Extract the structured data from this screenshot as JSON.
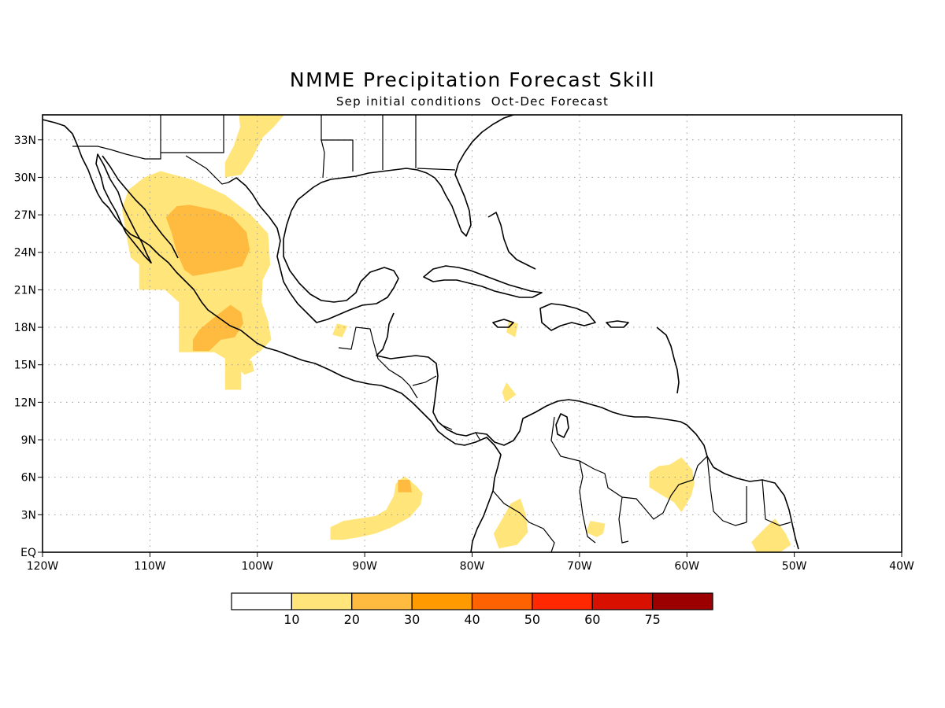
{
  "title": "NMME Precipitation Forecast Skill",
  "subtitle": "Sep initial conditions  Oct-Dec Forecast",
  "map": {
    "lon_range": [
      -120,
      -40
    ],
    "lat_range": [
      0,
      35
    ],
    "lon_ticks": [
      {
        "value": -120,
        "label": "120W"
      },
      {
        "value": -110,
        "label": "110W"
      },
      {
        "value": -100,
        "label": "100W"
      },
      {
        "value": -90,
        "label": "90W"
      },
      {
        "value": -80,
        "label": "80W"
      },
      {
        "value": -70,
        "label": "70W"
      },
      {
        "value": -60,
        "label": "60W"
      },
      {
        "value": -50,
        "label": "50W"
      },
      {
        "value": -40,
        "label": "40W"
      }
    ],
    "lat_ticks": [
      {
        "value": 0,
        "label": "EQ"
      },
      {
        "value": 3,
        "label": "3N"
      },
      {
        "value": 6,
        "label": "6N"
      },
      {
        "value": 9,
        "label": "9N"
      },
      {
        "value": 12,
        "label": "12N"
      },
      {
        "value": 15,
        "label": "15N"
      },
      {
        "value": 18,
        "label": "18N"
      },
      {
        "value": 21,
        "label": "21N"
      },
      {
        "value": 24,
        "label": "24N"
      },
      {
        "value": 27,
        "label": "27N"
      },
      {
        "value": 30,
        "label": "30N"
      },
      {
        "value": 33,
        "label": "33N"
      }
    ],
    "grid": true
  },
  "colorbar": {
    "colors": [
      "#ffffff",
      "#ffe57a",
      "#ffbb40",
      "#ff9a00",
      "#ff6200",
      "#ff2800",
      "#d81000",
      "#9c0000"
    ],
    "labels": [
      "10",
      "20",
      "30",
      "40",
      "50",
      "60",
      "75"
    ]
  },
  "chart_data": {
    "type": "heatmap",
    "title": "NMME Precipitation Forecast Skill",
    "subtitle": "Sep initial conditions  Oct-Dec Forecast",
    "xlim": [
      -120,
      -40
    ],
    "ylim": [
      0,
      35
    ],
    "contour_levels": [
      10,
      20,
      30,
      40,
      50,
      60,
      75
    ],
    "regions": [
      {
        "level": 10,
        "points": [
          [
            -109,
            30.5
          ],
          [
            -106,
            29.8
          ],
          [
            -103,
            28.6
          ],
          [
            -100.6,
            27
          ],
          [
            -99,
            25.5
          ],
          [
            -98.8,
            23
          ],
          [
            -99.5,
            21.8
          ],
          [
            -99.6,
            20
          ],
          [
            -99,
            18.5
          ],
          [
            -98.7,
            17
          ],
          [
            -99.7,
            16.1
          ],
          [
            -100.5,
            15.6
          ],
          [
            -101.5,
            14.6
          ],
          [
            -101.5,
            13
          ],
          [
            -103,
            13
          ],
          [
            -103,
            15.5
          ],
          [
            -104,
            16
          ],
          [
            -105.6,
            16
          ],
          [
            -107.3,
            16
          ],
          [
            -107.3,
            20
          ],
          [
            -108.6,
            21
          ],
          [
            -111,
            21
          ],
          [
            -111,
            23
          ],
          [
            -111.8,
            23.6
          ],
          [
            -112.2,
            25.4
          ],
          [
            -112.6,
            27.5
          ],
          [
            -112,
            29
          ],
          [
            -110.5,
            30
          ]
        ]
      },
      {
        "level": 10,
        "points": [
          [
            -101.7,
            35
          ],
          [
            -97.5,
            35
          ],
          [
            -98.5,
            34
          ],
          [
            -99.5,
            33.2
          ],
          [
            -100.5,
            31.5
          ],
          [
            -101.5,
            30.2
          ],
          [
            -103,
            30
          ],
          [
            -103,
            31.2
          ],
          [
            -102.2,
            32.5
          ],
          [
            -101.6,
            34
          ]
        ]
      },
      {
        "level": 10,
        "points": [
          [
            -86.3,
            6.1
          ],
          [
            -85.2,
            5.3
          ],
          [
            -84.6,
            4.7
          ],
          [
            -84.8,
            3.8
          ],
          [
            -85.8,
            2.8
          ],
          [
            -87.5,
            2
          ],
          [
            -89,
            1.5
          ],
          [
            -90.5,
            1.2
          ],
          [
            -92,
            1
          ],
          [
            -93.2,
            1
          ],
          [
            -93.2,
            2
          ],
          [
            -92,
            2.5
          ],
          [
            -90.5,
            2.7
          ],
          [
            -89,
            2.9
          ],
          [
            -88,
            3.4
          ],
          [
            -87.3,
            4.5
          ],
          [
            -87.1,
            5.5
          ]
        ]
      },
      {
        "level": 10,
        "points": [
          [
            -75.5,
            4.3
          ],
          [
            -75,
            3
          ],
          [
            -74.8,
            1.6
          ],
          [
            -75.8,
            0.6
          ],
          [
            -77.5,
            0.3
          ],
          [
            -78,
            1.5
          ],
          [
            -77.1,
            2.8
          ],
          [
            -76.4,
            3.9
          ]
        ]
      },
      {
        "level": 10,
        "points": [
          [
            -60.5,
            7.6
          ],
          [
            -59.5,
            6.6
          ],
          [
            -59.3,
            5.5
          ],
          [
            -59.6,
            4.5
          ],
          [
            -60.5,
            3.2
          ],
          [
            -61.2,
            4
          ],
          [
            -62.2,
            4.5
          ],
          [
            -63.5,
            5.2
          ],
          [
            -63.5,
            6.4
          ],
          [
            -62.6,
            6.9
          ],
          [
            -61.6,
            7
          ]
        ]
      },
      {
        "level": 10,
        "points": [
          [
            -51.8,
            2.7
          ],
          [
            -50.8,
            1.5
          ],
          [
            -50.3,
            0.6
          ],
          [
            -51.3,
            0
          ],
          [
            -53.5,
            0
          ],
          [
            -54,
            0.8
          ],
          [
            -53,
            1.7
          ]
        ]
      },
      {
        "level": 10,
        "points": [
          [
            -76.8,
            13.6
          ],
          [
            -75.9,
            12.6
          ],
          [
            -76.9,
            12
          ],
          [
            -77.2,
            12.8
          ]
        ]
      },
      {
        "level": 10,
        "points": [
          [
            -101.7,
            15.5
          ],
          [
            -100.5,
            15.3
          ],
          [
            -100.3,
            14.5
          ],
          [
            -101.2,
            14.2
          ],
          [
            -101.8,
            14.7
          ]
        ]
      },
      {
        "level": 10,
        "points": [
          [
            -69,
            2.5
          ],
          [
            -67.6,
            2.3
          ],
          [
            -67.8,
            1.5
          ],
          [
            -68.4,
            1.2
          ],
          [
            -69.4,
            1.6
          ]
        ]
      },
      {
        "level": 10,
        "points": [
          [
            -76.6,
            18.5
          ],
          [
            -75.7,
            18.3
          ],
          [
            -76,
            17.2
          ],
          [
            -76.8,
            17.6
          ]
        ]
      },
      {
        "level": 10,
        "points": [
          [
            -92.6,
            18.3
          ],
          [
            -91.6,
            18.1
          ],
          [
            -92.1,
            17.2
          ],
          [
            -93,
            17.4
          ]
        ]
      },
      {
        "level": 20,
        "points": [
          [
            -106.3,
            27.8
          ],
          [
            -104,
            27.4
          ],
          [
            -102.3,
            26.8
          ],
          [
            -101,
            25.6
          ],
          [
            -100.7,
            24.2
          ],
          [
            -101.4,
            22.9
          ],
          [
            -102.8,
            22.6
          ],
          [
            -104.7,
            22.3
          ],
          [
            -106,
            22.1
          ],
          [
            -106.8,
            22.6
          ],
          [
            -107.5,
            24
          ],
          [
            -108,
            25.6
          ],
          [
            -108.5,
            26.8
          ],
          [
            -107.5,
            27.7
          ]
        ]
      },
      {
        "level": 20,
        "points": [
          [
            -102.5,
            19.8
          ],
          [
            -101.5,
            19.2
          ],
          [
            -101.3,
            18.3
          ],
          [
            -102.1,
            17.2
          ],
          [
            -103.4,
            17
          ],
          [
            -104.5,
            16.1
          ],
          [
            -106,
            16.1
          ],
          [
            -106,
            17
          ],
          [
            -105.4,
            17.8
          ],
          [
            -104,
            18.8
          ]
        ]
      },
      {
        "level": 20,
        "points": [
          [
            -86.9,
            5.8
          ],
          [
            -85.8,
            5.8
          ],
          [
            -85.6,
            4.8
          ],
          [
            -86.9,
            4.8
          ]
        ]
      }
    ]
  }
}
